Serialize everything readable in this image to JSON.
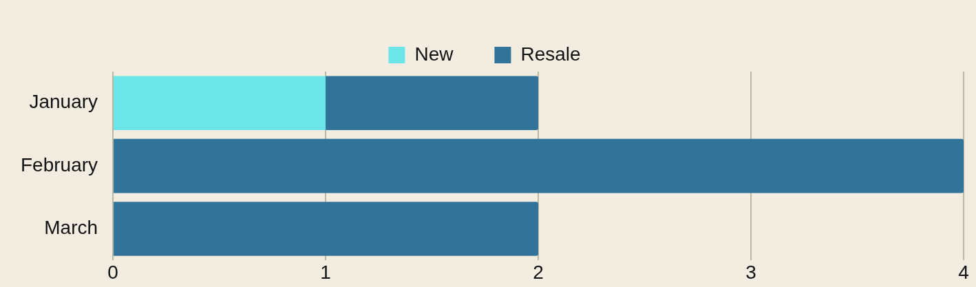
{
  "chart_data": {
    "type": "bar",
    "orientation": "horizontal",
    "stacked": true,
    "categories": [
      "January",
      "February",
      "March"
    ],
    "series": [
      {
        "name": "New",
        "color": "#6be5e8",
        "values": [
          1,
          0,
          0
        ]
      },
      {
        "name": "Resale",
        "color": "#317399",
        "values": [
          1,
          4,
          2
        ]
      }
    ],
    "xlim": [
      0,
      4
    ],
    "xticks": [
      0,
      1,
      2,
      3,
      4
    ],
    "grid": "x",
    "legend": "top"
  }
}
